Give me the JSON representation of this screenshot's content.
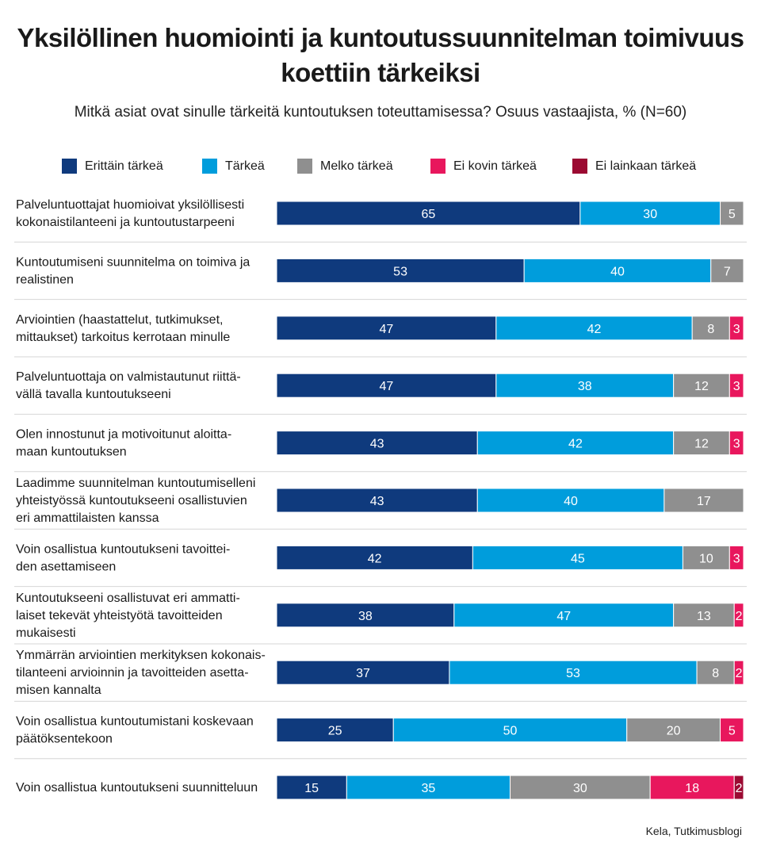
{
  "title_line1": "Yksilöllinen huomiointi ja kuntoutussuunnitelman toimivuus",
  "title_line2": "koettiin tärkeiksi",
  "subtitle": "Mitkä asiat ovat sinulle tärkeitä kuntoutuksen toteuttamisessa? Osuus vastaajista, % (N=60)",
  "source": "Kela, Tutkimusblogi",
  "chart_data": {
    "type": "bar",
    "orientation": "horizontal",
    "stacked": true,
    "unit": "%",
    "xlim": [
      0,
      100
    ],
    "grid": false,
    "legend_position": "top",
    "categories": [
      [
        "Palveluntuottajat huomioivat yksilöllisesti",
        "kokonaistilanteeni ja kuntoutustarpeeni"
      ],
      [
        "Kuntoutumiseni suunnitelma on toimiva ja",
        "realistinen"
      ],
      [
        "Arviointien (haastattelut, tutkimukset,",
        "mittaukset) tarkoitus kerrotaan minulle"
      ],
      [
        "Palveluntuottaja on valmistautunut riittä-",
        "vällä tavalla kuntoutukseeni"
      ],
      [
        "Olen innostunut ja motivoitunut aloitta-",
        "maan kuntoutuksen"
      ],
      [
        "Laadimme suunnitelman kuntoutumiselleni",
        "yhteistyössä kuntoutukseeni osallistuvien",
        "eri ammattilaisten kanssa"
      ],
      [
        "Voin osallistua kuntoutukseni tavoittei-",
        "den asettamiseen"
      ],
      [
        "Kuntoutukseeni osallistuvat eri ammatti-",
        "laiset tekevät yhteistyötä tavoitteiden",
        "mukaisesti"
      ],
      [
        "Ymmärrän arviointien merkityksen kokonais-",
        "tilanteeni arvioinnin ja tavoitteiden asetta-",
        "misen kannalta"
      ],
      [
        "Voin osallistua kuntoutumistani koskevaan",
        "päätöksentekoon"
      ],
      [
        "Voin osallistua kuntoutukseni suunnitteluun"
      ]
    ],
    "series": [
      {
        "name": "Erittäin tärkeä",
        "color": "#0f3a7d",
        "values": [
          65,
          53,
          47,
          47,
          43,
          43,
          42,
          38,
          37,
          25,
          15
        ]
      },
      {
        "name": "Tärkeä",
        "color": "#009ddc",
        "values": [
          30,
          40,
          42,
          38,
          42,
          40,
          45,
          47,
          53,
          50,
          35
        ]
      },
      {
        "name": "Melko tärkeä",
        "color": "#8f8f8f",
        "values": [
          5,
          7,
          8,
          12,
          12,
          17,
          10,
          13,
          8,
          20,
          30
        ]
      },
      {
        "name": "Ei kovin tärkeä",
        "color": "#e8175d",
        "values": [
          0,
          0,
          3,
          3,
          3,
          0,
          3,
          2,
          2,
          5,
          18
        ]
      },
      {
        "name": "Ei lainkaan tärkeä",
        "color": "#9b0a32",
        "values": [
          0,
          0,
          0,
          0,
          0,
          0,
          0,
          0,
          0,
          0,
          2
        ]
      }
    ]
  }
}
